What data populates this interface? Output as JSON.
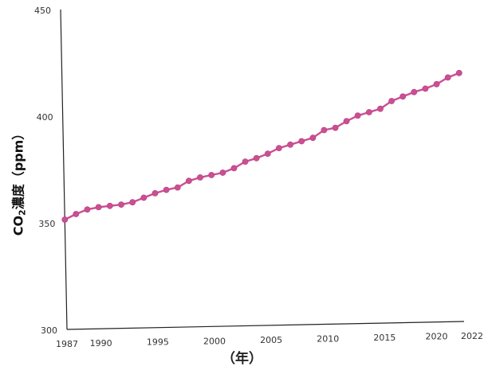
{
  "chart_data": {
    "type": "line",
    "title": "",
    "ylabel": {
      "prefix": "CO",
      "subscript": "2",
      "suffix": "濃度（ppm）"
    },
    "xlabel": "（年）",
    "ylim": [
      300,
      450
    ],
    "y_ticks": [
      300,
      350,
      400,
      450
    ],
    "x_range": [
      1987,
      2022
    ],
    "x_ticks": [
      1987,
      1990,
      1995,
      2000,
      2005,
      2010,
      2015,
      2020,
      2022
    ],
    "grid": false,
    "series": [
      {
        "color": "#cc4f93",
        "x": [
          1987,
          1988,
          1989,
          1990,
          1991,
          1992,
          1993,
          1994,
          1995,
          1996,
          1997,
          1998,
          1999,
          2000,
          2001,
          2002,
          2003,
          2004,
          2005,
          2006,
          2007,
          2008,
          2009,
          2010,
          2011,
          2012,
          2013,
          2014,
          2015,
          2016,
          2017,
          2018,
          2019,
          2020,
          2021,
          2022
        ],
        "values": [
          351.5,
          354.0,
          356.0,
          357.0,
          357.5,
          358.0,
          359.0,
          361.0,
          363.0,
          364.5,
          365.5,
          368.5,
          370.0,
          371.0,
          372.0,
          374.0,
          377.0,
          378.5,
          380.5,
          383.0,
          384.5,
          386.0,
          387.5,
          391.0,
          392.0,
          395.0,
          397.5,
          399.0,
          400.5,
          404.0,
          406.0,
          408.0,
          409.5,
          411.5,
          414.5,
          416.5
        ]
      }
    ]
  }
}
